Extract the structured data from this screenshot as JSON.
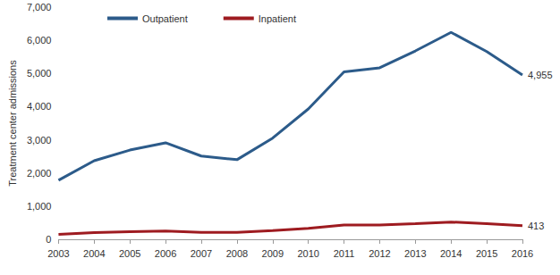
{
  "chart_data": {
    "type": "line",
    "y_label": "Treatment center admissions",
    "categories": [
      "2003",
      "2004",
      "2005",
      "2006",
      "2007",
      "2008",
      "2009",
      "2010",
      "2011",
      "2012",
      "2013",
      "2014",
      "2015",
      "2016"
    ],
    "series": [
      {
        "name": "Outpatient",
        "color": "#2c5b8a",
        "values": [
          1780,
          2370,
          2690,
          2910,
          2510,
          2400,
          3050,
          3930,
          5050,
          5170,
          5680,
          6240,
          5660,
          4955
        ],
        "end_label": "4,955"
      },
      {
        "name": "Inpatient",
        "color": "#9e1b20",
        "values": [
          150,
          200,
          230,
          250,
          210,
          210,
          260,
          330,
          430,
          430,
          470,
          520,
          470,
          413
        ],
        "end_label": "413"
      }
    ],
    "ylim": [
      0,
      7000
    ],
    "yticks": [
      0,
      {
        "value": 1000,
        "label": "1,000"
      },
      {
        "value": 2000,
        "label": "2,000"
      },
      {
        "value": 3000,
        "label": "3,000"
      },
      {
        "value": 4000,
        "label": "4,000"
      },
      {
        "value": 5000,
        "label": "5,000"
      },
      {
        "value": 6000,
        "label": "6,000"
      },
      {
        "value": 7000,
        "label": "7,000"
      }
    ],
    "grid": false,
    "legend": "top-left"
  }
}
